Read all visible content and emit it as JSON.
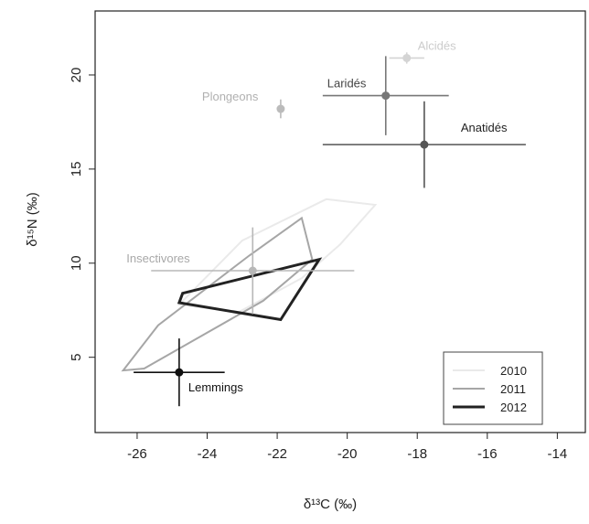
{
  "chart_data": {
    "type": "scatter",
    "xlabel": "δ¹³C (‰)",
    "ylabel": "δ¹⁵N (‰)",
    "xlim": [
      -27.2,
      -13.2
    ],
    "ylim": [
      1.0,
      23.4
    ],
    "x_ticks": [
      -26,
      -24,
      -22,
      -20,
      -18,
      -16,
      -14
    ],
    "y_ticks": [
      5,
      10,
      15,
      20
    ],
    "grid": false,
    "points": [
      {
        "label": "Anatidés",
        "x": -17.8,
        "y": 16.3,
        "xerr_lo": 2.9,
        "xerr_hi": 2.9,
        "yerr_lo": 2.3,
        "yerr_hi": 2.3,
        "color": "#555555",
        "label_color": "#222222"
      },
      {
        "label": "Laridés",
        "x": -18.9,
        "y": 18.9,
        "xerr_lo": 1.8,
        "xerr_hi": 1.8,
        "yerr_lo": 2.1,
        "yerr_hi": 2.1,
        "color": "#777777",
        "label_color": "#444444"
      },
      {
        "label": "Alcidés",
        "x": -18.3,
        "y": 20.9,
        "xerr_lo": 0.5,
        "xerr_hi": 0.5,
        "yerr_lo": 0.3,
        "yerr_hi": 0.3,
        "color": "#d4d4d4",
        "label_color": "#cccccc"
      },
      {
        "label": "Plongeons",
        "x": -21.9,
        "y": 18.2,
        "xerr_lo": 0.0,
        "xerr_hi": 0.0,
        "yerr_lo": 0.5,
        "yerr_hi": 0.5,
        "color": "#bbbbbb",
        "label_color": "#b0b0b0"
      },
      {
        "label": "Insectivores",
        "x": -22.7,
        "y": 9.6,
        "xerr_lo": 2.9,
        "xerr_hi": 2.9,
        "yerr_lo": 2.3,
        "yerr_hi": 2.3,
        "color": "#b8b8b8",
        "label_color": "#a8a8a8"
      },
      {
        "label": "Lemmings",
        "x": -24.8,
        "y": 4.2,
        "xerr_lo": 1.3,
        "xerr_hi": 1.3,
        "yerr_lo": 1.8,
        "yerr_hi": 1.8,
        "color": "#111111",
        "label_color": "#111111"
      }
    ],
    "series": [
      {
        "name": "2010",
        "color": "#eaeaea",
        "polygon": [
          [
            -24.8,
            7.8
          ],
          [
            -23.0,
            11.2
          ],
          [
            -20.6,
            13.4
          ],
          [
            -19.2,
            13.1
          ],
          [
            -20.2,
            11.0
          ],
          [
            -21.3,
            9.2
          ],
          [
            -23.1,
            7.4
          ]
        ]
      },
      {
        "name": "2011",
        "color": "#a6a6a6",
        "polygon": [
          [
            -26.4,
            4.3
          ],
          [
            -25.4,
            6.7
          ],
          [
            -22.8,
            10.4
          ],
          [
            -21.3,
            12.4
          ],
          [
            -21.0,
            10.2
          ],
          [
            -22.4,
            8.0
          ],
          [
            -25.8,
            4.4
          ]
        ]
      },
      {
        "name": "2012",
        "color": "#222222",
        "polygon": [
          [
            -24.7,
            8.4
          ],
          [
            -20.8,
            10.2
          ],
          [
            -21.9,
            7.0
          ],
          [
            -24.8,
            7.9
          ]
        ]
      }
    ],
    "legend": {
      "placement": "bottom-right",
      "entries": [
        "2010",
        "2011",
        "2012"
      ]
    }
  }
}
